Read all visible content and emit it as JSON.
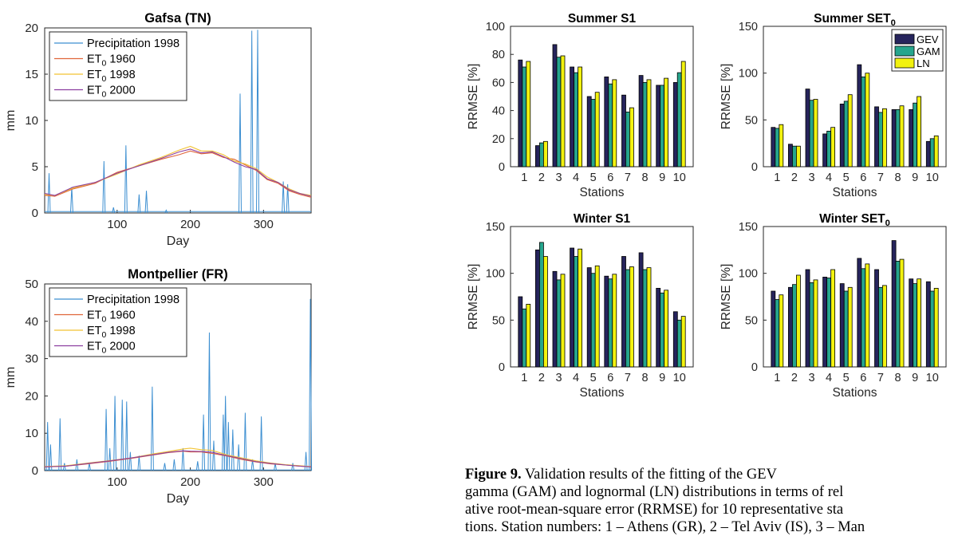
{
  "colors": {
    "precip": "#3d8fd1",
    "et1960": "#e0663a",
    "et1998": "#f2c233",
    "et2000": "#8d3fa0",
    "gev": "#26245c",
    "gam": "#26a58d",
    "ln": "#f2f20f"
  },
  "line_legend": {
    "precip": "Precipitation 1998",
    "et_symbol": "ET",
    "et_sub": "0",
    "y1960": "1960",
    "y1998": "1998",
    "y2000": "2000"
  },
  "bar_legend": [
    "GEV",
    "GAM",
    "LN"
  ],
  "chart_data": [
    {
      "type": "line",
      "title": "Gafsa (TN)",
      "xlabel": "Day",
      "ylabel": "mm",
      "xlim": [
        1,
        365
      ],
      "ylim": [
        0,
        20
      ],
      "xticks": [
        100,
        200,
        300
      ],
      "yticks": [
        0,
        5,
        10,
        15,
        20
      ],
      "legend_position": "top-left",
      "precip_spikes": [
        [
          7,
          4.3
        ],
        [
          38,
          2.8
        ],
        [
          82,
          5.6
        ],
        [
          95,
          0.6
        ],
        [
          112,
          7.3
        ],
        [
          130,
          2.0
        ],
        [
          140,
          2.4
        ],
        [
          167,
          0.3
        ],
        [
          268,
          12.9
        ],
        [
          284,
          19.7
        ],
        [
          292,
          19.8
        ],
        [
          327,
          3.4
        ],
        [
          333,
          3.1
        ]
      ],
      "series": [
        {
          "name": "ET0 1960",
          "x": [
            1,
            15,
            40,
            70,
            100,
            130,
            160,
            185,
            200,
            215,
            230,
            245,
            260,
            275,
            290,
            305,
            320,
            335,
            350,
            365
          ],
          "y": [
            1.9,
            1.8,
            2.6,
            3.2,
            4.4,
            5.1,
            5.8,
            6.3,
            6.7,
            6.4,
            6.5,
            6.0,
            5.8,
            5.2,
            4.6,
            3.6,
            3.2,
            2.4,
            2.0,
            1.7
          ]
        },
        {
          "name": "ET0 1998",
          "x": [
            1,
            15,
            40,
            70,
            100,
            130,
            160,
            185,
            200,
            215,
            230,
            245,
            260,
            275,
            290,
            305,
            320,
            335,
            350,
            365
          ],
          "y": [
            2.0,
            1.9,
            2.7,
            3.3,
            4.2,
            5.2,
            6.0,
            6.8,
            7.2,
            6.7,
            6.7,
            6.3,
            5.6,
            5.3,
            4.8,
            3.9,
            3.3,
            2.6,
            2.1,
            1.9
          ]
        },
        {
          "name": "ET0 2000",
          "x": [
            1,
            15,
            40,
            70,
            100,
            130,
            160,
            185,
            200,
            215,
            230,
            245,
            260,
            275,
            290,
            305,
            320,
            335,
            350,
            365
          ],
          "y": [
            2.1,
            1.9,
            2.8,
            3.3,
            4.3,
            5.1,
            5.9,
            6.6,
            6.9,
            6.5,
            6.6,
            6.1,
            5.5,
            5.0,
            4.7,
            3.7,
            3.3,
            2.5,
            2.1,
            1.8
          ]
        }
      ]
    },
    {
      "type": "line",
      "title": "Montpellier (FR)",
      "xlabel": "Day",
      "ylabel": "mm",
      "xlim": [
        1,
        365
      ],
      "ylim": [
        0,
        50
      ],
      "xticks": [
        100,
        200,
        300
      ],
      "yticks": [
        0,
        10,
        20,
        30,
        40,
        50
      ],
      "legend_position": "top-left",
      "precip_spikes": [
        [
          5,
          13
        ],
        [
          9,
          7
        ],
        [
          22,
          14
        ],
        [
          28,
          2
        ],
        [
          45,
          3
        ],
        [
          62,
          2
        ],
        [
          85,
          16.5
        ],
        [
          90,
          6
        ],
        [
          97,
          20
        ],
        [
          107,
          19
        ],
        [
          113,
          18.5
        ],
        [
          118,
          5
        ],
        [
          130,
          4
        ],
        [
          148,
          22.5
        ],
        [
          165,
          2
        ],
        [
          178,
          3
        ],
        [
          190,
          6
        ],
        [
          210,
          2.5
        ],
        [
          218,
          15
        ],
        [
          226,
          37
        ],
        [
          232,
          8
        ],
        [
          245,
          15
        ],
        [
          248,
          20
        ],
        [
          252,
          13
        ],
        [
          258,
          11
        ],
        [
          266,
          7
        ],
        [
          275,
          15.5
        ],
        [
          285,
          3
        ],
        [
          297,
          14.5
        ],
        [
          316,
          2
        ],
        [
          340,
          2
        ],
        [
          358,
          5
        ],
        [
          364,
          46
        ]
      ],
      "series": [
        {
          "name": "ET0 1960",
          "x": [
            1,
            30,
            60,
            90,
            120,
            150,
            170,
            190,
            200,
            215,
            230,
            250,
            270,
            290,
            310,
            330,
            350,
            365
          ],
          "y": [
            1.0,
            1.2,
            1.8,
            2.5,
            3.3,
            4.2,
            4.8,
            5.2,
            5.0,
            5.0,
            4.6,
            3.9,
            3.0,
            2.3,
            1.8,
            1.5,
            1.2,
            1.0
          ]
        },
        {
          "name": "ET0 1998",
          "x": [
            1,
            30,
            60,
            90,
            120,
            150,
            170,
            190,
            200,
            215,
            230,
            250,
            270,
            290,
            310,
            330,
            350,
            365
          ],
          "y": [
            1.1,
            1.3,
            2.0,
            2.7,
            3.4,
            4.5,
            5.1,
            5.8,
            6.0,
            5.6,
            5.4,
            4.2,
            3.4,
            2.6,
            2.0,
            1.6,
            1.3,
            1.1
          ]
        },
        {
          "name": "ET0 2000",
          "x": [
            1,
            30,
            60,
            90,
            120,
            150,
            170,
            190,
            200,
            215,
            230,
            250,
            270,
            290,
            310,
            330,
            350,
            365
          ],
          "y": [
            1.0,
            1.2,
            1.9,
            2.6,
            3.4,
            4.3,
            4.9,
            5.3,
            5.2,
            5.1,
            4.9,
            4.0,
            3.2,
            2.4,
            1.9,
            1.5,
            1.2,
            1.0
          ]
        }
      ]
    },
    {
      "type": "bar",
      "title": "Summer S1",
      "title_sub": "",
      "xlabel": "Stations",
      "ylabel": "RRMSE [%]",
      "ylim": [
        0,
        100
      ],
      "yticks": [
        0,
        20,
        40,
        60,
        80,
        100
      ],
      "categories": [
        "1",
        "2",
        "3",
        "4",
        "5",
        "6",
        "7",
        "8",
        "9",
        "10"
      ],
      "legend": false,
      "series": [
        {
          "name": "GEV",
          "values": [
            76,
            15,
            87,
            71,
            50,
            64,
            51,
            65,
            58,
            60
          ]
        },
        {
          "name": "GAM",
          "values": [
            71,
            17,
            78,
            67,
            48,
            59,
            39,
            60,
            58,
            67
          ]
        },
        {
          "name": "LN",
          "values": [
            75,
            18,
            79,
            71,
            53,
            62,
            42,
            62,
            63,
            75
          ]
        }
      ]
    },
    {
      "type": "bar",
      "title": "Summer SET",
      "title_sub": "0",
      "xlabel": "Stations",
      "ylabel": "RRMSE [%]",
      "ylim": [
        0,
        150
      ],
      "yticks": [
        0,
        50,
        100,
        150
      ],
      "categories": [
        "1",
        "2",
        "3",
        "4",
        "5",
        "6",
        "7",
        "8",
        "9",
        "10"
      ],
      "legend": true,
      "legend_position": "top-right",
      "series": [
        {
          "name": "GEV",
          "values": [
            42,
            24,
            83,
            35,
            67,
            109,
            64,
            61,
            61,
            27
          ]
        },
        {
          "name": "GAM",
          "values": [
            41,
            22,
            71,
            38,
            70,
            96,
            58,
            61,
            68,
            30
          ]
        },
        {
          "name": "LN",
          "values": [
            45,
            22,
            72,
            42,
            77,
            100,
            62,
            65,
            75,
            33
          ]
        }
      ]
    },
    {
      "type": "bar",
      "title": "Winter S1",
      "title_sub": "",
      "xlabel": "Stations",
      "ylabel": "RRMSE [%]",
      "ylim": [
        0,
        150
      ],
      "yticks": [
        0,
        50,
        100,
        150
      ],
      "categories": [
        "1",
        "2",
        "3",
        "4",
        "5",
        "6",
        "7",
        "8",
        "9",
        "10"
      ],
      "legend": false,
      "series": [
        {
          "name": "GEV",
          "values": [
            75,
            125,
            102,
            127,
            106,
            97,
            118,
            122,
            84,
            59
          ]
        },
        {
          "name": "GAM",
          "values": [
            62,
            133,
            93,
            118,
            100,
            94,
            104,
            104,
            79,
            50
          ]
        },
        {
          "name": "LN",
          "values": [
            67,
            118,
            99,
            126,
            108,
            99,
            107,
            106,
            82,
            54
          ]
        }
      ]
    },
    {
      "type": "bar",
      "title": "Winter SET",
      "title_sub": "0",
      "xlabel": "Stations",
      "ylabel": "RRMSE [%]",
      "ylim": [
        0,
        150
      ],
      "yticks": [
        0,
        50,
        100,
        150
      ],
      "categories": [
        "1",
        "2",
        "3",
        "4",
        "5",
        "6",
        "7",
        "8",
        "9",
        "10"
      ],
      "legend": false,
      "series": [
        {
          "name": "GEV",
          "values": [
            81,
            85,
            104,
            96,
            89,
            116,
            104,
            135,
            94,
            91
          ]
        },
        {
          "name": "GAM",
          "values": [
            72,
            88,
            90,
            95,
            81,
            105,
            85,
            113,
            89,
            81
          ]
        },
        {
          "name": "LN",
          "values": [
            77,
            98,
            93,
            104,
            85,
            110,
            87,
            115,
            94,
            84
          ]
        }
      ]
    }
  ],
  "caption": {
    "label": "Figure 9.",
    "line1": "Validation results of the fitting of the GEV",
    "line2": "gamma (GAM) and lognormal (LN) distributions in terms of rel",
    "line3": "ative root-mean-square error (RRMSE) for 10 representative sta",
    "line4": "tions. Station numbers: 1 – Athens (GR), 2 – Tel Aviv (IS), 3 – Man"
  }
}
